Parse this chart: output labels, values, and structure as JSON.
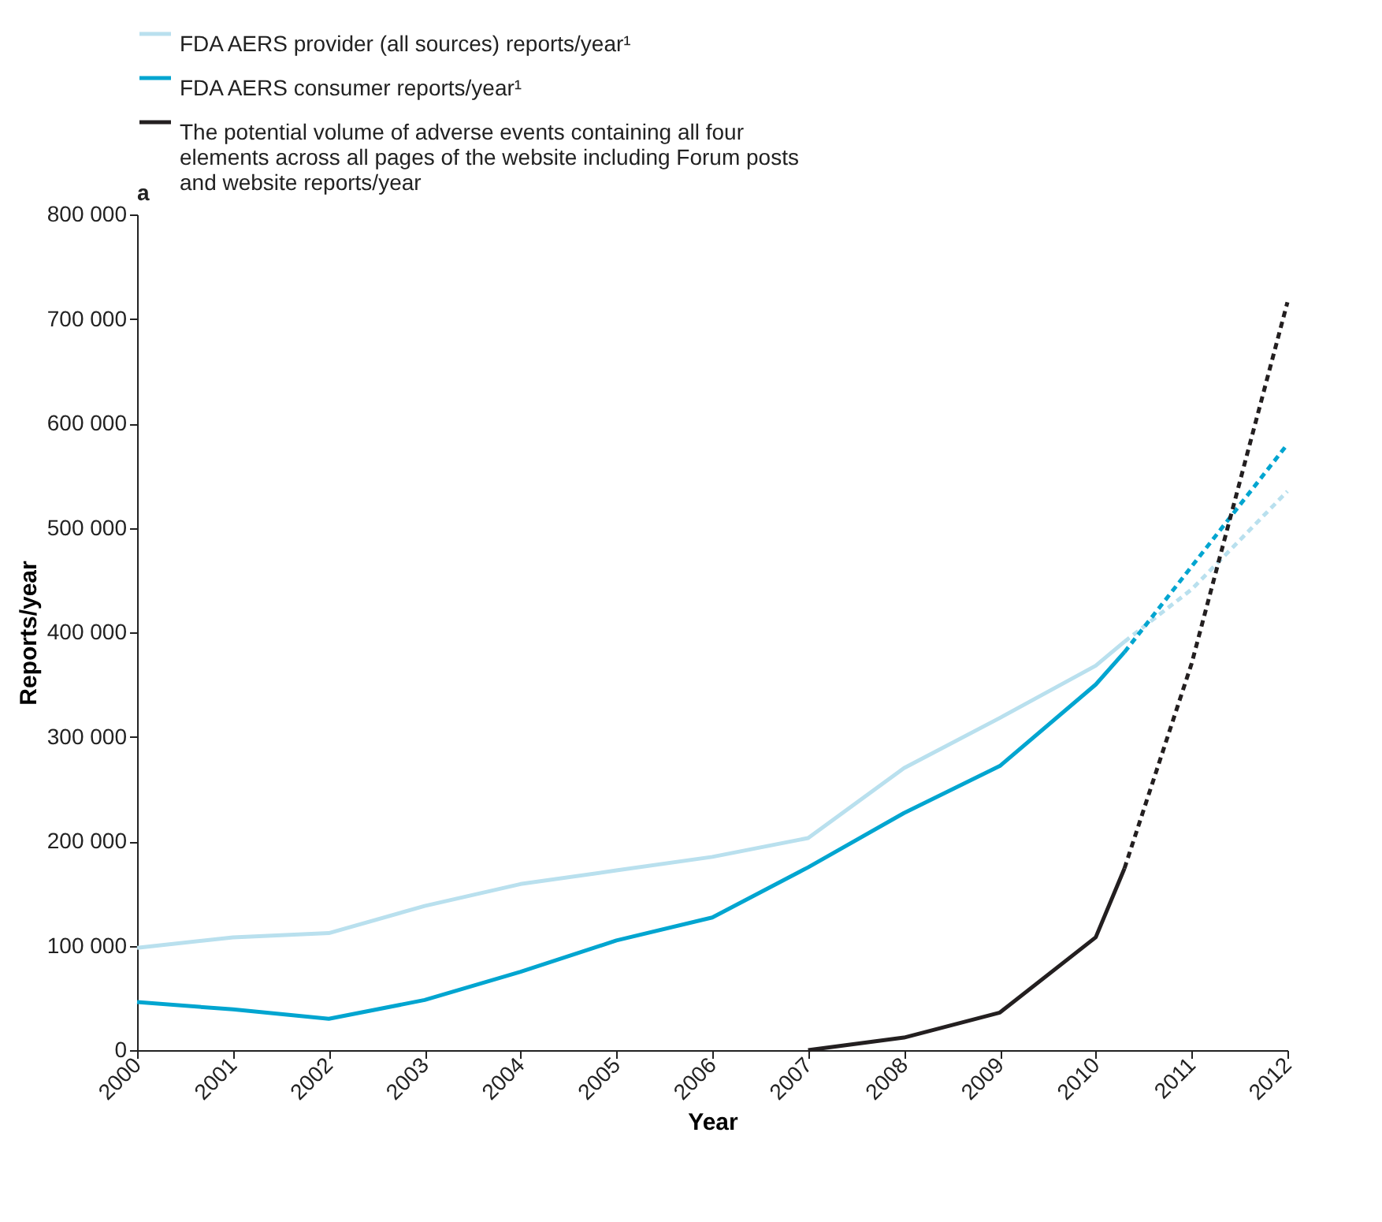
{
  "chart_data": {
    "type": "line",
    "xlabel": "Year",
    "ylabel": "Reports/year",
    "annotations": [
      "a"
    ],
    "xlim": [
      2000,
      2012
    ],
    "xticks": [
      2000,
      2001,
      2002,
      2003,
      2004,
      2005,
      2006,
      2007,
      2008,
      2009,
      2010,
      2011,
      2012
    ],
    "ylim": [
      0,
      800000
    ],
    "yticks": [
      0,
      {
        "value": 100000,
        "label": "100 000"
      },
      {
        "value": 200000,
        "label": "200 000"
      },
      {
        "value": 300000,
        "label": "300 000"
      },
      {
        "value": 400000,
        "label": "400 000"
      },
      {
        "value": 500000,
        "label": "500 000"
      },
      {
        "value": 600000,
        "label": "600 000"
      },
      {
        "value": 700000,
        "label": "700 000"
      },
      {
        "value": 800000,
        "label": "800 000"
      }
    ],
    "grid": false,
    "legend": "top",
    "marker": "none",
    "series": [
      {
        "name": "FDA AERS provider (all sources) reports/year¹",
        "color": "#b9e0ee",
        "line_style": "solid",
        "x": [
          2000,
          2001,
          2002,
          2003,
          2004,
          2005,
          2006,
          2007,
          2008,
          2009,
          2010,
          2010.3
        ],
        "values": [
          98000,
          108000,
          112000,
          138000,
          159000,
          172000,
          185000,
          203000,
          270000,
          318000,
          368000,
          391000
        ]
      },
      {
        "name": "FDA AERS consumer reports/year¹",
        "color": "#00a5d0",
        "line_style": "solid",
        "x": [
          2000,
          2001,
          2002,
          2003,
          2004,
          2005,
          2006,
          2007,
          2008,
          2009,
          2010,
          2010.3
        ],
        "values": [
          46000,
          39000,
          30000,
          48000,
          75000,
          105000,
          127000,
          175000,
          227000,
          272000,
          350000,
          381000
        ]
      },
      {
        "name": "The potential volume of adverse events containing all four elements across all pages of the website including Forum posts and website reports/year",
        "color": "#231f20",
        "line_style": "solid",
        "x": [
          2007,
          2008,
          2009,
          2010,
          2010.3
        ],
        "values": [
          0,
          12000,
          36000,
          108000,
          174000
        ]
      },
      {
        "color": "#b9e0ee",
        "line_style": "dashed",
        "x": [
          2010.3,
          2011,
          2012
        ],
        "values": [
          391000,
          441000,
          535000
        ]
      },
      {
        "color": "#00a5d0",
        "line_style": "dashed",
        "x": [
          2010.3,
          2012
        ],
        "values": [
          381000,
          580000
        ]
      },
      {
        "color": "#231f20",
        "line_style": "dashed",
        "x": [
          2010.3,
          2011,
          2012
        ],
        "values": [
          174000,
          370000,
          716000
        ]
      }
    ]
  }
}
